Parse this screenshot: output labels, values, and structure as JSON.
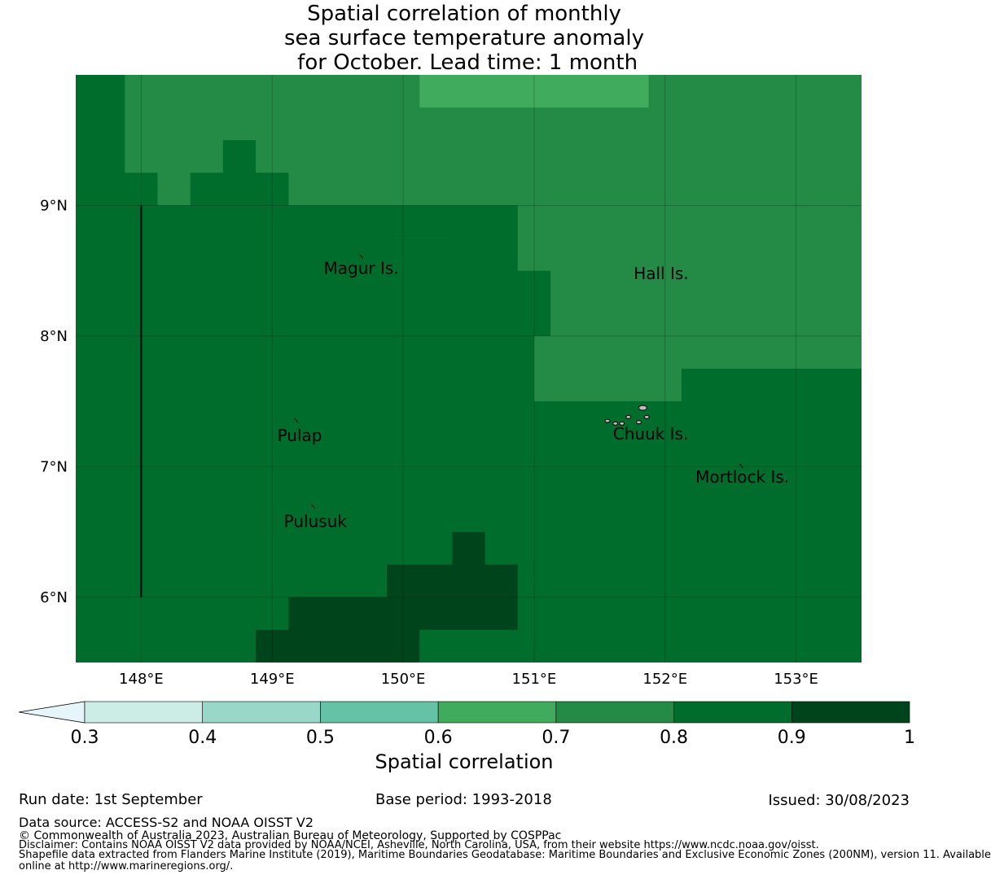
{
  "title_lines": [
    "Spatial correlation of monthly",
    "sea surface temperature anomaly",
    " for October. Lead time: 1 month"
  ],
  "map": {
    "lon_range": [
      147.5,
      153.5
    ],
    "lat_range": [
      5.5,
      10.0
    ],
    "lon_ticks": [
      148,
      149,
      150,
      151,
      152,
      153
    ],
    "lon_tick_labels": [
      "148°E",
      "149°E",
      "150°E",
      "151°E",
      "152°E",
      "153°E"
    ],
    "lat_ticks": [
      6,
      7,
      8,
      9
    ],
    "lat_tick_labels": [
      "6°N",
      "7°N",
      "8°N",
      "9°N"
    ],
    "colors": {
      "class_0_9_1": "#00441b",
      "class_0_8_0_9": "#006d2c",
      "class_0_7_0_8": "#238b45",
      "class_0_6_0_7": "#41ab5d"
    },
    "regions": [
      {
        "cls": "0.7-0.8",
        "polygon": [
          [
            147.875,
            10.0
          ],
          [
            153.5,
            10.0
          ],
          [
            153.5,
            7.75
          ],
          [
            152.125,
            7.75
          ],
          [
            152.125,
            7.5
          ],
          [
            151.0,
            7.5
          ],
          [
            151.0,
            8.0
          ],
          [
            151.125,
            8.0
          ],
          [
            151.125,
            8.5
          ],
          [
            150.875,
            8.5
          ],
          [
            150.875,
            9.0
          ],
          [
            150.375,
            9.0
          ],
          [
            150.375,
            8.75
          ],
          [
            149.875,
            8.75
          ],
          [
            149.875,
            9.0
          ],
          [
            149.125,
            9.0
          ],
          [
            149.125,
            9.25
          ],
          [
            148.875,
            9.25
          ],
          [
            148.875,
            9.5
          ],
          [
            148.625,
            9.5
          ],
          [
            148.625,
            9.25
          ],
          [
            148.375,
            9.25
          ],
          [
            148.375,
            9.0
          ],
          [
            148.125,
            9.0
          ],
          [
            148.125,
            9.25
          ],
          [
            147.875,
            9.25
          ]
        ]
      },
      {
        "cls": "0.6-0.7",
        "polygon": [
          [
            150.125,
            10.0
          ],
          [
            151.875,
            10.0
          ],
          [
            151.875,
            9.75
          ],
          [
            150.125,
            9.75
          ]
        ]
      },
      {
        "cls": "0.8-0.9",
        "polygon": [
          [
            149.875,
            9.0
          ],
          [
            150.375,
            9.0
          ],
          [
            150.375,
            8.75
          ],
          [
            149.875,
            8.75
          ]
        ]
      },
      {
        "cls": "0.8-0.9",
        "polygon": [
          [
            151.625,
            7.5
          ],
          [
            152.125,
            7.5
          ],
          [
            152.125,
            7.25
          ],
          [
            151.625,
            7.25
          ]
        ]
      },
      {
        "cls": "0.9-1",
        "polygon": [
          [
            148.875,
            5.5
          ],
          [
            150.125,
            5.5
          ],
          [
            150.125,
            5.75
          ],
          [
            150.875,
            5.75
          ],
          [
            150.875,
            6.25
          ],
          [
            150.625,
            6.25
          ],
          [
            150.625,
            6.5
          ],
          [
            150.375,
            6.5
          ],
          [
            150.375,
            6.25
          ],
          [
            149.875,
            6.25
          ],
          [
            149.875,
            6.0
          ],
          [
            149.125,
            6.0
          ],
          [
            149.125,
            5.75
          ],
          [
            148.875,
            5.75
          ]
        ]
      }
    ],
    "places": [
      {
        "name": "Magur Is.",
        "lon": 149.68,
        "lat": 8.52,
        "mark_lon": 149.68,
        "mark_lat": 8.6
      },
      {
        "name": "Hall Is.",
        "lon": 151.97,
        "lat": 8.48
      },
      {
        "name": "Pulap",
        "lon": 149.21,
        "lat": 7.24,
        "mark_lon": 149.18,
        "mark_lat": 7.35
      },
      {
        "name": "Chuuk Is.",
        "lon": 151.89,
        "lat": 7.25
      },
      {
        "name": "Mortlock Is.",
        "lon": 152.59,
        "lat": 6.92,
        "mark_lon": 152.58,
        "mark_lat": 7.0
      },
      {
        "name": "Pulusuk",
        "lon": 149.33,
        "lat": 6.58,
        "mark_lon": 149.31,
        "mark_lat": 6.69
      }
    ],
    "boundary_line": {
      "lon": 148.0,
      "lat_from": 6.0,
      "lat_to": 9.0
    }
  },
  "colorbar": {
    "boundaries": [
      0.3,
      0.4,
      0.5,
      0.6,
      0.7,
      0.8,
      0.9,
      1.0
    ],
    "tick_labels": [
      "0.3",
      "0.4",
      "0.5",
      "0.6",
      "0.7",
      "0.8",
      "0.9",
      "1"
    ],
    "colors": [
      "#ccece6",
      "#99d8c9",
      "#66c2a4",
      "#41ab5d",
      "#238b45",
      "#006d2c",
      "#00441b"
    ],
    "under_color": "#e5f5f9",
    "label": "Spatial correlation"
  },
  "footer": {
    "run_date": "Run date: 1st September",
    "base_period": "Base period: 1993-2018",
    "issued": "Issued: 30/08/2023",
    "data_source": "Data source: ACCESS-S2 and NOAA OISST V2",
    "copyright": "© Commonwealth of Australia 2023, Australian Bureau of Meteorology, Supported by COSPPac",
    "disclaimer": "Disclaimer: Contains NOAA OISST V2 data provided by NOAA/NCEI, Asheville, North Carolina, USA, from their website https://www.ncdc.noaa.gov/oisst.",
    "shapefile_1": "Shapefile data extracted from Flanders Marine Institute (2019), Maritime Boundaries Geodatabase: Maritime Boundaries and Exclusive Economic Zones (200NM), version 11. Available",
    "shapefile_2": "online at http://www.marineregions.org/."
  }
}
